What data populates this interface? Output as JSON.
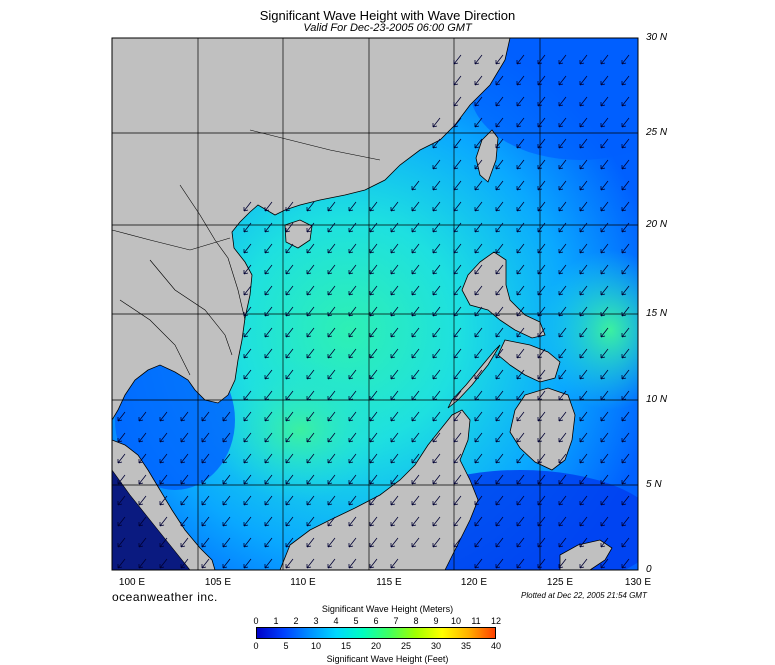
{
  "title": "Significant Wave Height with Wave Direction",
  "subtitle": "Valid For Dec-23-2005 06:00 GMT",
  "brand": "oceanweather inc.",
  "plotted": "Plotted at Dec 22, 2005 21:54 GMT",
  "lat_labels": [
    "30 N",
    "25 N",
    "20 N",
    "15 N",
    "10 N",
    "5 N",
    "0"
  ],
  "lon_labels": [
    "100 E",
    "105 E",
    "110 E",
    "115 E",
    "120 E",
    "125 E",
    "130 E"
  ],
  "colorbar": {
    "title_top": "Significant Wave Height (Meters)",
    "title_bottom": "Significant Wave Height (Feet)",
    "meters_ticks": [
      "0",
      "1",
      "2",
      "3",
      "4",
      "5",
      "6",
      "7",
      "8",
      "9",
      "10",
      "11",
      "12"
    ],
    "feet_ticks": [
      "0",
      "5",
      "10",
      "15",
      "20",
      "25",
      "30",
      "35",
      "40"
    ],
    "colors": [
      "#0000c8",
      "#0040ff",
      "#0090ff",
      "#00d8ff",
      "#00ffc0",
      "#40ff60",
      "#a0ff00",
      "#ffff00",
      "#ffb000",
      "#ff4000"
    ]
  },
  "colors": {
    "land": "#c0c0c0",
    "ocean_low": "#0050ff",
    "ocean_high": "#20e6c8",
    "grid": "#000000"
  }
}
